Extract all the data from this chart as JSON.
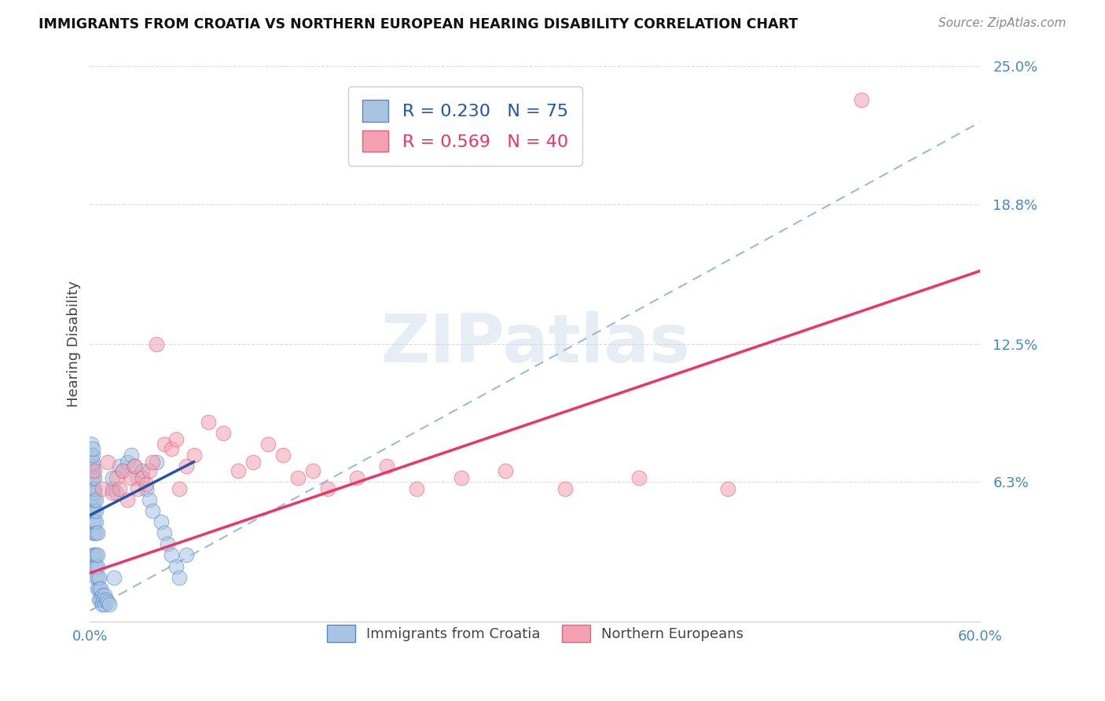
{
  "title": "IMMIGRANTS FROM CROATIA VS NORTHERN EUROPEAN HEARING DISABILITY CORRELATION CHART",
  "source": "Source: ZipAtlas.com",
  "ylabel": "Hearing Disability",
  "xlim": [
    0.0,
    0.6
  ],
  "ylim": [
    0.0,
    0.25
  ],
  "xticks": [
    0.0,
    0.12,
    0.24,
    0.36,
    0.48,
    0.6
  ],
  "xtick_labels": [
    "0.0%",
    "",
    "",
    "",
    "",
    "60.0%"
  ],
  "ytick_labels": [
    "",
    "6.3%",
    "12.5%",
    "18.8%",
    "25.0%"
  ],
  "yticks": [
    0.0,
    0.063,
    0.125,
    0.188,
    0.25
  ],
  "blue_R": 0.23,
  "blue_N": 75,
  "pink_R": 0.569,
  "pink_N": 40,
  "blue_color": "#A8C4E0",
  "pink_color": "#F4A0B0",
  "blue_edge_color": "#5588CC",
  "pink_edge_color": "#E06080",
  "blue_line_color": "#2255AA",
  "pink_line_color": "#EE3366",
  "dashed_line_color": "#99BBDD",
  "legend_label_blue": "Immigrants from Croatia",
  "legend_label_pink": "Northern Europeans",
  "blue_scatter_x": [
    0.001,
    0.001,
    0.001,
    0.001,
    0.001,
    0.001,
    0.001,
    0.002,
    0.002,
    0.002,
    0.002,
    0.002,
    0.002,
    0.002,
    0.002,
    0.002,
    0.002,
    0.002,
    0.002,
    0.003,
    0.003,
    0.003,
    0.003,
    0.003,
    0.003,
    0.003,
    0.003,
    0.003,
    0.004,
    0.004,
    0.004,
    0.004,
    0.004,
    0.004,
    0.004,
    0.005,
    0.005,
    0.005,
    0.005,
    0.005,
    0.006,
    0.006,
    0.006,
    0.007,
    0.007,
    0.008,
    0.008,
    0.009,
    0.01,
    0.01,
    0.011,
    0.012,
    0.013,
    0.015,
    0.015,
    0.016,
    0.018,
    0.02,
    0.022,
    0.025,
    0.028,
    0.03,
    0.032,
    0.035,
    0.038,
    0.04,
    0.042,
    0.045,
    0.048,
    0.05,
    0.052,
    0.055,
    0.058,
    0.06,
    0.065
  ],
  "blue_scatter_y": [
    0.05,
    0.055,
    0.06,
    0.065,
    0.07,
    0.075,
    0.08,
    0.03,
    0.04,
    0.045,
    0.05,
    0.055,
    0.06,
    0.065,
    0.068,
    0.07,
    0.072,
    0.075,
    0.078,
    0.025,
    0.03,
    0.04,
    0.045,
    0.05,
    0.055,
    0.058,
    0.06,
    0.065,
    0.02,
    0.025,
    0.03,
    0.04,
    0.045,
    0.05,
    0.055,
    0.015,
    0.02,
    0.025,
    0.03,
    0.04,
    0.01,
    0.015,
    0.02,
    0.01,
    0.015,
    0.008,
    0.012,
    0.01,
    0.008,
    0.012,
    0.01,
    0.009,
    0.008,
    0.06,
    0.065,
    0.02,
    0.058,
    0.07,
    0.068,
    0.072,
    0.075,
    0.07,
    0.065,
    0.068,
    0.06,
    0.055,
    0.05,
    0.072,
    0.045,
    0.04,
    0.035,
    0.03,
    0.025,
    0.02,
    0.03
  ],
  "pink_scatter_x": [
    0.003,
    0.008,
    0.012,
    0.015,
    0.018,
    0.02,
    0.022,
    0.025,
    0.028,
    0.03,
    0.032,
    0.035,
    0.038,
    0.04,
    0.042,
    0.045,
    0.05,
    0.055,
    0.058,
    0.06,
    0.065,
    0.07,
    0.08,
    0.09,
    0.1,
    0.11,
    0.12,
    0.13,
    0.14,
    0.15,
    0.16,
    0.18,
    0.2,
    0.22,
    0.25,
    0.28,
    0.32,
    0.37,
    0.43,
    0.52
  ],
  "pink_scatter_y": [
    0.068,
    0.06,
    0.072,
    0.058,
    0.065,
    0.06,
    0.068,
    0.055,
    0.065,
    0.07,
    0.06,
    0.065,
    0.062,
    0.068,
    0.072,
    0.125,
    0.08,
    0.078,
    0.082,
    0.06,
    0.07,
    0.075,
    0.09,
    0.085,
    0.068,
    0.072,
    0.08,
    0.075,
    0.065,
    0.068,
    0.06,
    0.065,
    0.07,
    0.06,
    0.065,
    0.068,
    0.06,
    0.065,
    0.06,
    0.235
  ],
  "blue_line_x": [
    0.0,
    0.07
  ],
  "blue_line_y": [
    0.048,
    0.072
  ],
  "pink_line_x": [
    0.0,
    0.6
  ],
  "pink_line_y": [
    0.022,
    0.158
  ],
  "dashed_line_x": [
    0.0,
    0.6
  ],
  "dashed_line_y": [
    0.005,
    0.225
  ],
  "background_color": "#FFFFFF",
  "grid_color": "#DDDDDD",
  "watermark": "ZIPatlas"
}
